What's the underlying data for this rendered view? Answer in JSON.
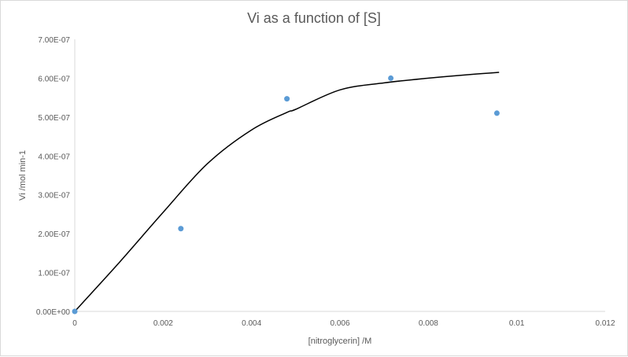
{
  "chart_data": {
    "type": "scatter",
    "title": "Vi as a function of [S]",
    "xlabel": "[nitroglycerin] /M",
    "ylabel": "Vi /mol min-1",
    "xlim": [
      0,
      0.012
    ],
    "ylim": [
      0,
      7e-07
    ],
    "x_ticks": [
      0,
      0.002,
      0.004,
      0.006,
      0.008,
      0.01,
      0.012
    ],
    "x_tick_labels": [
      "0",
      "0.002",
      "0.004",
      "0.006",
      "0.008",
      "0.01",
      "0.012"
    ],
    "y_ticks": [
      0,
      1e-07,
      2e-07,
      3e-07,
      4e-07,
      5e-07,
      6e-07,
      7e-07
    ],
    "y_tick_labels": [
      "0.00E+00",
      "1.00E-07",
      "2.00E-07",
      "3.00E-07",
      "4.00E-07",
      "5.00E-07",
      "6.00E-07",
      "7.00E-07"
    ],
    "grid": false,
    "legend": "none",
    "points": {
      "x": [
        0,
        0.0024,
        0.0048,
        0.00715,
        0.00955
      ],
      "y": [
        0,
        2.13e-07,
        5.47e-07,
        6e-07,
        5.1e-07
      ],
      "color": "#5B9BD5"
    },
    "fit_curve": {
      "x": [
        0,
        0.001,
        0.002,
        0.003,
        0.004,
        0.0048,
        0.005,
        0.006,
        0.007,
        0.008,
        0.009,
        0.0096
      ],
      "y": [
        0,
        1.25e-07,
        2.55e-07,
        3.8e-07,
        4.67e-07,
        5.12e-07,
        5.2e-07,
        5.7e-07,
        5.88e-07,
        6e-07,
        6.1e-07,
        6.15e-07
      ],
      "color": "#000000"
    }
  }
}
